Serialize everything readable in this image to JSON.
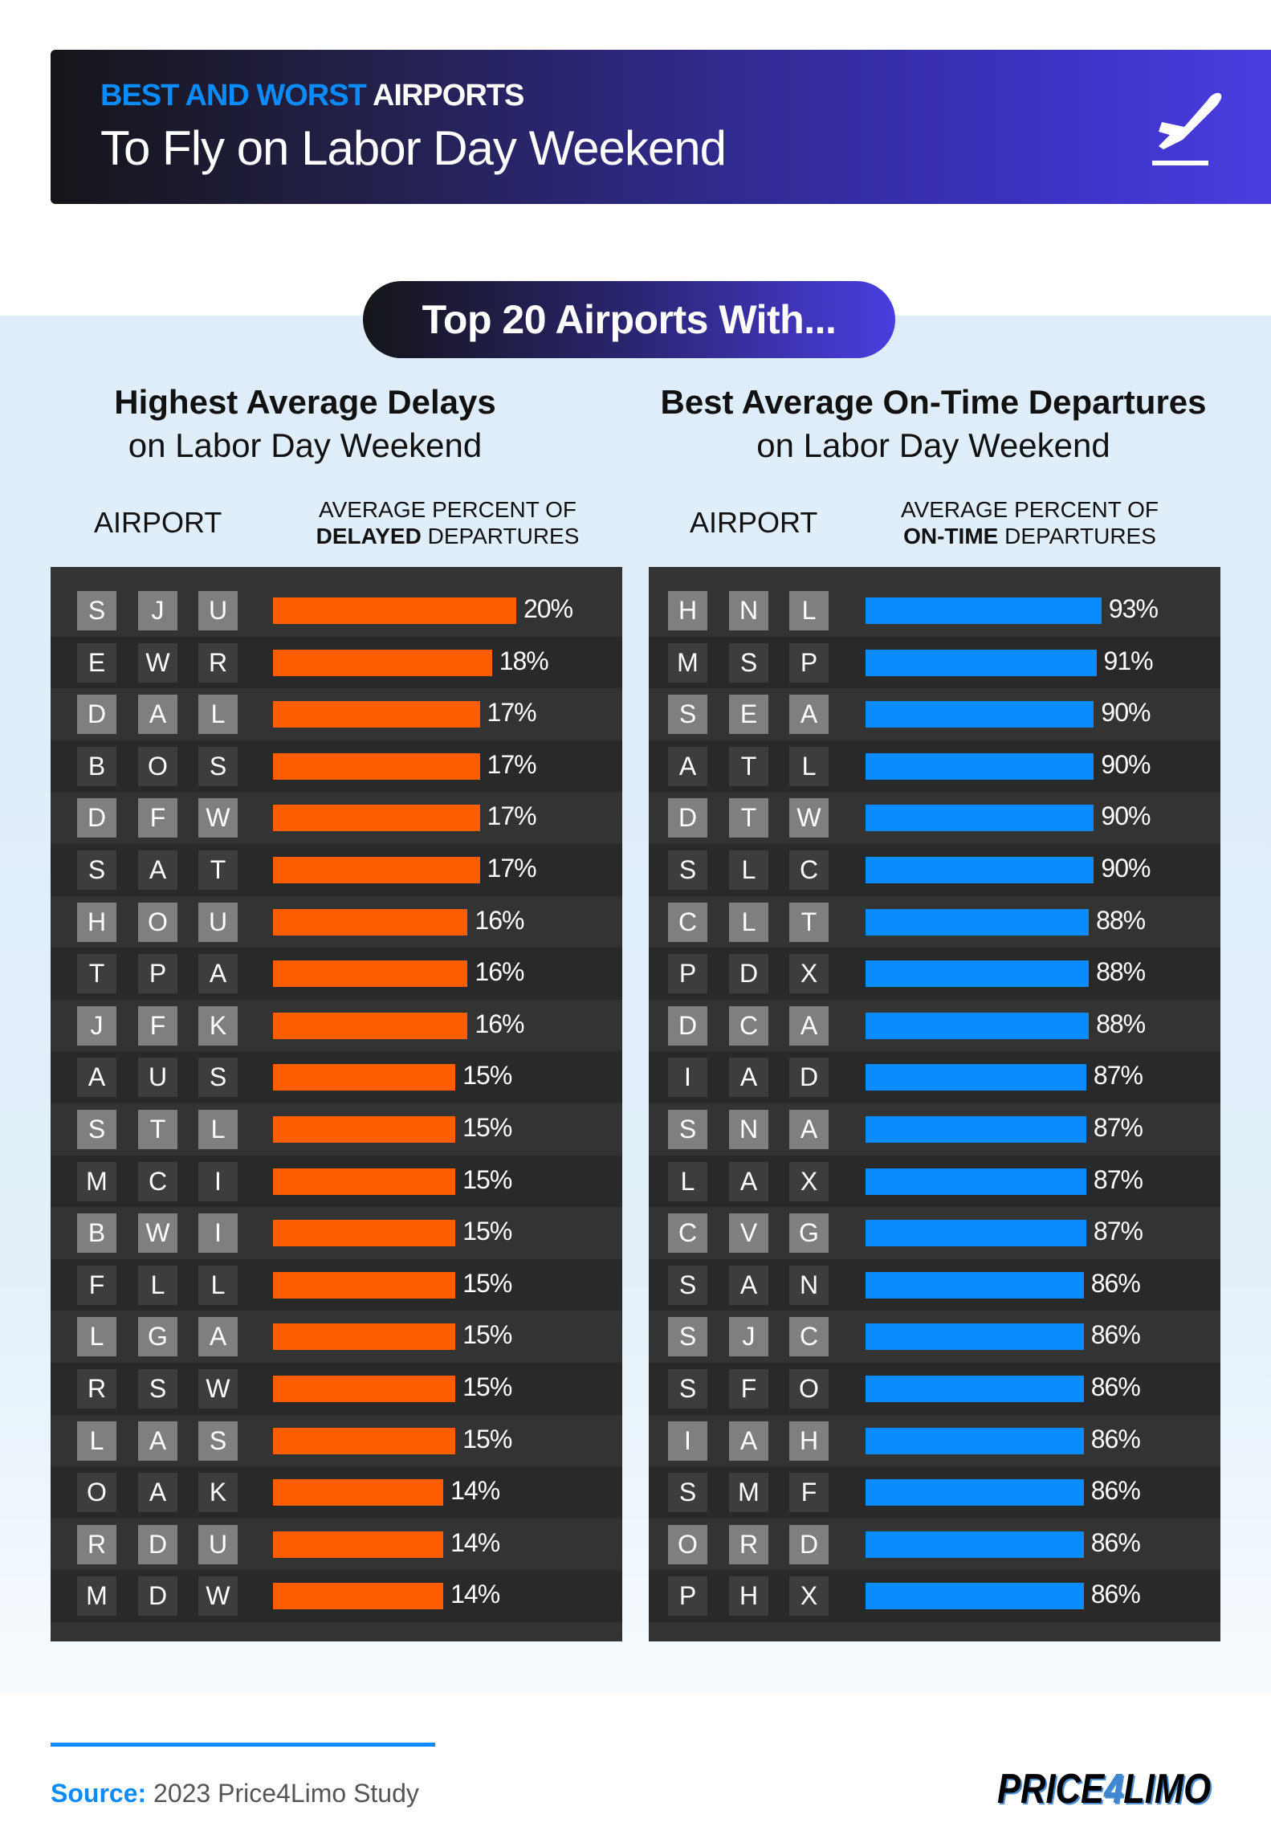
{
  "header": {
    "kicker_blue": "BEST AND WORST",
    "kicker_white": "AIRPORTS",
    "title": "To Fly on Labor Day Weekend",
    "icon": "airplane-departure-icon"
  },
  "pill": "Top 20 Airports With...",
  "colors": {
    "delay_bar": "#ff5e00",
    "ontime_bar": "#0a8cff",
    "accent": "#0a8cff"
  },
  "chart_data": [
    {
      "type": "bar",
      "orientation": "horizontal",
      "title": "Highest Average Delays",
      "subtitle": "on Labor Day Weekend",
      "col_airport": "AIRPORT",
      "col_value_top": "AVERAGE PERCENT OF",
      "col_value_bold": "DELAYED",
      "col_value_rest": "DEPARTURES",
      "categories": [
        "SJU",
        "EWR",
        "DAL",
        "BOS",
        "DFW",
        "SAT",
        "HOU",
        "TPA",
        "JFK",
        "AUS",
        "STL",
        "MCI",
        "BWI",
        "FLL",
        "LGA",
        "RSW",
        "LAS",
        "OAK",
        "RDU",
        "MDW"
      ],
      "values": [
        20,
        18,
        17,
        17,
        17,
        17,
        16,
        16,
        16,
        15,
        15,
        15,
        15,
        15,
        15,
        15,
        15,
        14,
        14,
        14
      ],
      "labels": [
        "20%",
        "18%",
        "17%",
        "17%",
        "17%",
        "17%",
        "16%",
        "16%",
        "16%",
        "15%",
        "15%",
        "15%",
        "15%",
        "15%",
        "15%",
        "15%",
        "15%",
        "14%",
        "14%",
        "14%"
      ],
      "unit": "%",
      "color": "#ff5e00"
    },
    {
      "type": "bar",
      "orientation": "horizontal",
      "title": "Best Average On-Time Departures",
      "subtitle": "on Labor Day Weekend",
      "col_airport": "AIRPORT",
      "col_value_top": "AVERAGE PERCENT OF",
      "col_value_bold": "ON-TIME",
      "col_value_rest": "DEPARTURES",
      "categories": [
        "HNL",
        "MSP",
        "SEA",
        "ATL",
        "DTW",
        "SLC",
        "CLT",
        "PDX",
        "DCA",
        "IAD",
        "SNA",
        "LAX",
        "CVG",
        "SAN",
        "SJC",
        "SFO",
        "IAH",
        "SMF",
        "ORD",
        "PHX"
      ],
      "values": [
        93,
        91,
        90,
        90,
        90,
        90,
        88,
        88,
        88,
        87,
        87,
        87,
        87,
        86,
        86,
        86,
        86,
        86,
        86,
        86
      ],
      "labels": [
        "93%",
        "91%",
        "90%",
        "90%",
        "90%",
        "90%",
        "88%",
        "88%",
        "88%",
        "87%",
        "87%",
        "87%",
        "87%",
        "86%",
        "86%",
        "86%",
        "86%",
        "86%",
        "86%",
        "86%"
      ],
      "unit": "%",
      "color": "#0a8cff"
    }
  ],
  "footer": {
    "source_label": "Source:",
    "source_text": "2023 Price4Limo Study",
    "logo": "PRICE4LIMO"
  }
}
